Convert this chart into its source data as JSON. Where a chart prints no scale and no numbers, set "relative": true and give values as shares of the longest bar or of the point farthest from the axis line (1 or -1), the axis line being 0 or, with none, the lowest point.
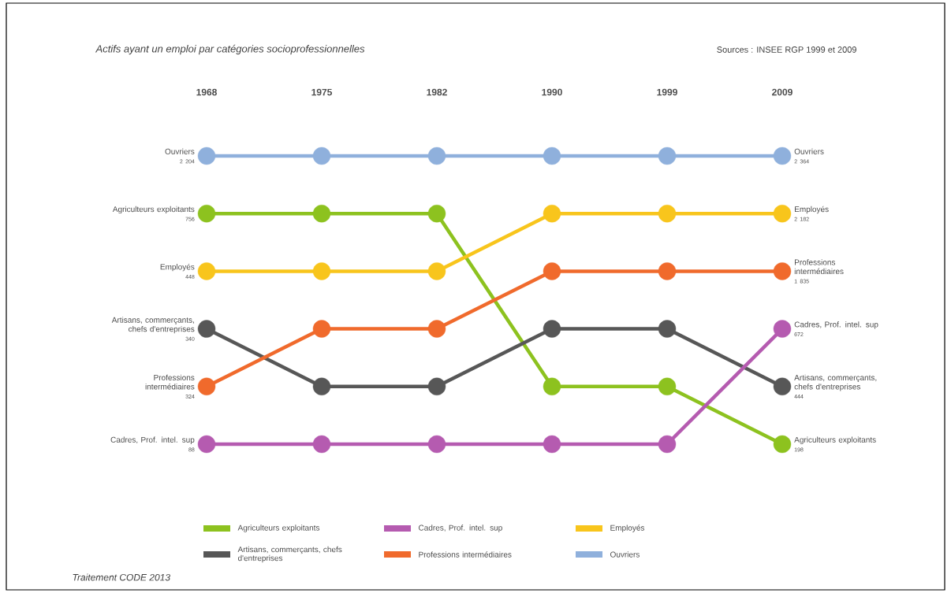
{
  "chart_data": {
    "type": "line",
    "relative": true,
    "marker": "circle",
    "line_style": "solid",
    "legend": "bottom",
    "title": "Actifs ayant un emploi par catégories socioprofessionnelles",
    "categories": [
      "1968",
      "1975",
      "1982",
      "1990",
      "1999",
      "2009"
    ],
    "series": [
      {
        "name": "Agriculteurs exploitants",
        "color": "#8dc21f",
        "values": [
          0.8,
          0.8,
          0.8,
          0.2,
          0.2,
          0
        ]
      },
      {
        "name": "Artisans, commerçants, chefs d'entreprises",
        "color": "#575757",
        "values": [
          0.4,
          0.2,
          0.2,
          0.4,
          0.4,
          0.2
        ]
      },
      {
        "name": "Cadres, Prof. intel. sup",
        "color": "#b55bb0",
        "values": [
          0,
          0,
          0,
          0,
          0,
          0.4
        ]
      },
      {
        "name": "Professions intermédiaires",
        "color": "#f06a2c",
        "values": [
          0.2,
          0.4,
          0.4,
          0.6,
          0.6,
          0.6
        ]
      },
      {
        "name": "Employés",
        "color": "#f8c51c",
        "values": [
          0.6,
          0.6,
          0.6,
          0.8,
          0.8,
          0.8
        ]
      },
      {
        "name": "Ouvriers",
        "color": "#8fb0dc",
        "values": [
          1,
          1,
          1,
          1,
          1,
          1
        ]
      }
    ],
    "annotations": [
      "Sources : INSEE RGP 1999 et 2009",
      "Traitement CODE 2013",
      {
        "text": "Ouvriers",
        "x": "1968",
        "y": 1
      },
      {
        "text": "2 204",
        "x": "1968",
        "y": 1
      },
      {
        "text": "Agriculteurs exploitants",
        "x": "1968",
        "y": 0.8
      },
      {
        "text": "756",
        "x": "1968",
        "y": 0.8
      },
      {
        "text": "Employés",
        "x": "1968",
        "y": 0.6
      },
      {
        "text": "448",
        "x": "1968",
        "y": 0.6
      },
      {
        "text": "Artisans, commerçants, chefs d'entreprises",
        "x": "1968",
        "y": 0.4
      },
      {
        "text": "340",
        "x": "1968",
        "y": 0.4
      },
      {
        "text": "Professions intermédiaires",
        "x": "1968",
        "y": 0.2
      },
      {
        "text": "324",
        "x": "1968",
        "y": 0.2
      },
      {
        "text": "Cadres, Prof. intel. sup",
        "x": "1968",
        "y": 0
      },
      {
        "text": "88",
        "x": "1968",
        "y": 0
      },
      {
        "text": "Ouvriers",
        "x": "2009",
        "y": 1
      },
      {
        "text": "2 364",
        "x": "2009",
        "y": 1
      },
      {
        "text": "Employés",
        "x": "2009",
        "y": 0.8
      },
      {
        "text": "2 182",
        "x": "2009",
        "y": 0.8
      },
      {
        "text": "Professions intermédiaires",
        "x": "2009",
        "y": 0.6
      },
      {
        "text": "1 835",
        "x": "2009",
        "y": 0.6
      },
      {
        "text": "Cadres, Prof. intel. sup",
        "x": "2009",
        "y": 0.4
      },
      {
        "text": "672",
        "x": "2009",
        "y": 0.4
      },
      {
        "text": "Artisans, commerçants, chefs d'entreprises",
        "x": "2009",
        "y": 0.2
      },
      {
        "text": "444",
        "x": "2009",
        "y": 0.2
      },
      {
        "text": "Agriculteurs exploitants",
        "x": "2009",
        "y": 0
      },
      {
        "text": "198",
        "x": "2009",
        "y": 0
      }
    ]
  }
}
